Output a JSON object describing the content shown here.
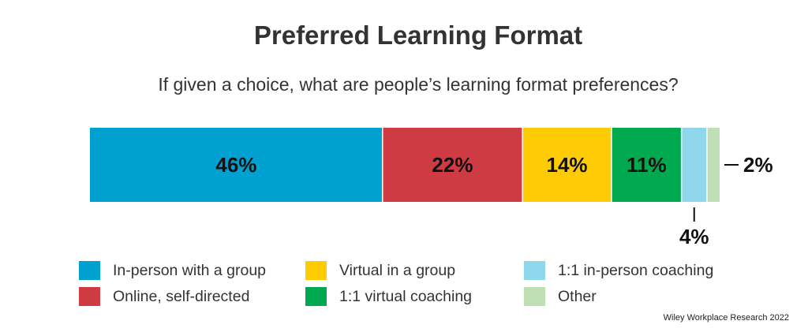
{
  "chart_data": {
    "type": "bar",
    "orientation": "horizontal-stacked",
    "title": "Preferred Learning Format",
    "subtitle": "If given a choice, what are people’s learning format preferences?",
    "unit": "%",
    "categories": [
      "In-person with a group",
      "Online, self-directed",
      "Virtual in a group",
      "1:1 virtual coaching",
      "1:1 in-person coaching",
      "Other"
    ],
    "values": [
      46,
      22,
      14,
      11,
      4,
      2
    ],
    "labels": [
      "46%",
      "22%",
      "14%",
      "11%",
      "4%",
      "2%"
    ],
    "colors": [
      "#00a1d0",
      "#cf3b43",
      "#ffcb05",
      "#00a94f",
      "#8fd7ea",
      "#bfe0b5"
    ],
    "xlim": [
      0,
      100
    ],
    "grid": false,
    "legend_position": "bottom",
    "source": "Wiley Workplace Research 2022"
  }
}
